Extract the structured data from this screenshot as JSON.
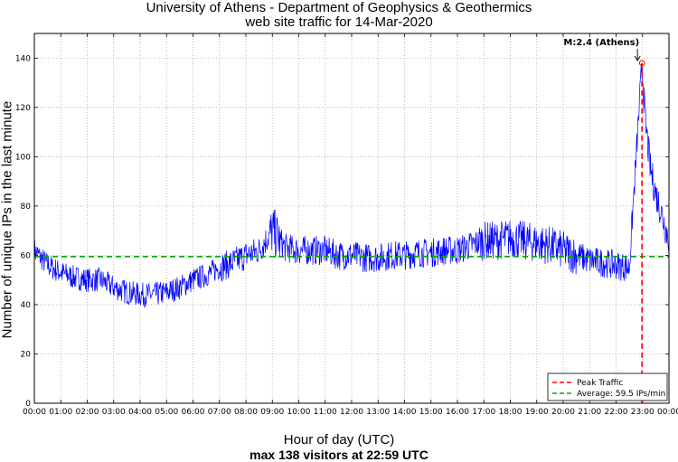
{
  "header": {
    "title_line1": "University of Athens - Department of Geophysics & Geothermics",
    "title_line2": "web site traffic for 14-Mar-2020"
  },
  "axes": {
    "xlabel": "Hour of day (UTC)",
    "subtitle": "max 138 visitors at 22:59 UTC",
    "ylabel": "Number of unique IPs in the last minute"
  },
  "chart_data": {
    "type": "line",
    "title": "University of Athens - Department of Geophysics & Geothermics web site traffic for 14-Mar-2020",
    "xlabel": "Hour of day (UTC)",
    "ylabel": "Number of unique IPs in the last minute",
    "xlim": [
      "00:00",
      "24:00"
    ],
    "ylim": [
      0,
      150
    ],
    "x_tick_labels": [
      "00:00",
      "01:00",
      "02:00",
      "03:00",
      "04:00",
      "05:00",
      "06:00",
      "07:00",
      "08:00",
      "09:00",
      "10:00",
      "11:00",
      "12:00",
      "13:00",
      "14:00",
      "15:00",
      "16:00",
      "17:00",
      "18:00",
      "19:00",
      "20:00",
      "21:00",
      "22:00",
      "23:00",
      "00:00"
    ],
    "y_ticks": [
      0,
      20,
      40,
      60,
      80,
      100,
      120,
      140
    ],
    "grid": true,
    "legend_position": "bottom-right",
    "series": [
      {
        "name": "traffic",
        "color": "#0000ff",
        "x_unit": "hour of day (UTC)",
        "x": [
          0,
          0.5,
          1,
          1.5,
          2,
          2.5,
          3,
          3.5,
          4,
          4.5,
          5,
          5.5,
          6,
          6.5,
          7,
          7.5,
          8,
          8.5,
          9,
          9.5,
          10,
          10.5,
          11,
          11.5,
          12,
          12.5,
          13,
          13.5,
          14,
          14.5,
          15,
          15.5,
          16,
          16.5,
          17,
          17.5,
          18,
          18.5,
          19,
          19.5,
          20,
          20.5,
          21,
          21.5,
          22,
          22.5,
          22.98,
          23.1,
          23.3,
          23.5,
          23.7,
          23.9,
          24
        ],
        "y": [
          62,
          56,
          53,
          51,
          50,
          50,
          47,
          45,
          44,
          44,
          45,
          47,
          50,
          52,
          55,
          57,
          60,
          62,
          70,
          63,
          62,
          62,
          62,
          60,
          60,
          59,
          59,
          60,
          60,
          61,
          61,
          62,
          62,
          64,
          66,
          66,
          67,
          66,
          65,
          64,
          62,
          60,
          58,
          57,
          56,
          55,
          138,
          115,
          95,
          85,
          78,
          70,
          67
        ]
      },
      {
        "name": "Average: 59.5 IPs/min",
        "color": "#00aa00",
        "y": 59.5
      },
      {
        "name": "Peak Traffic",
        "color": "#ff0000",
        "x": 22.98
      }
    ],
    "peak": {
      "time": "22:59",
      "value": 138
    },
    "annotation": "M:2.4 (Athens)",
    "legend": [
      "Peak Traffic",
      "Average: 59.5 IPs/min"
    ]
  }
}
